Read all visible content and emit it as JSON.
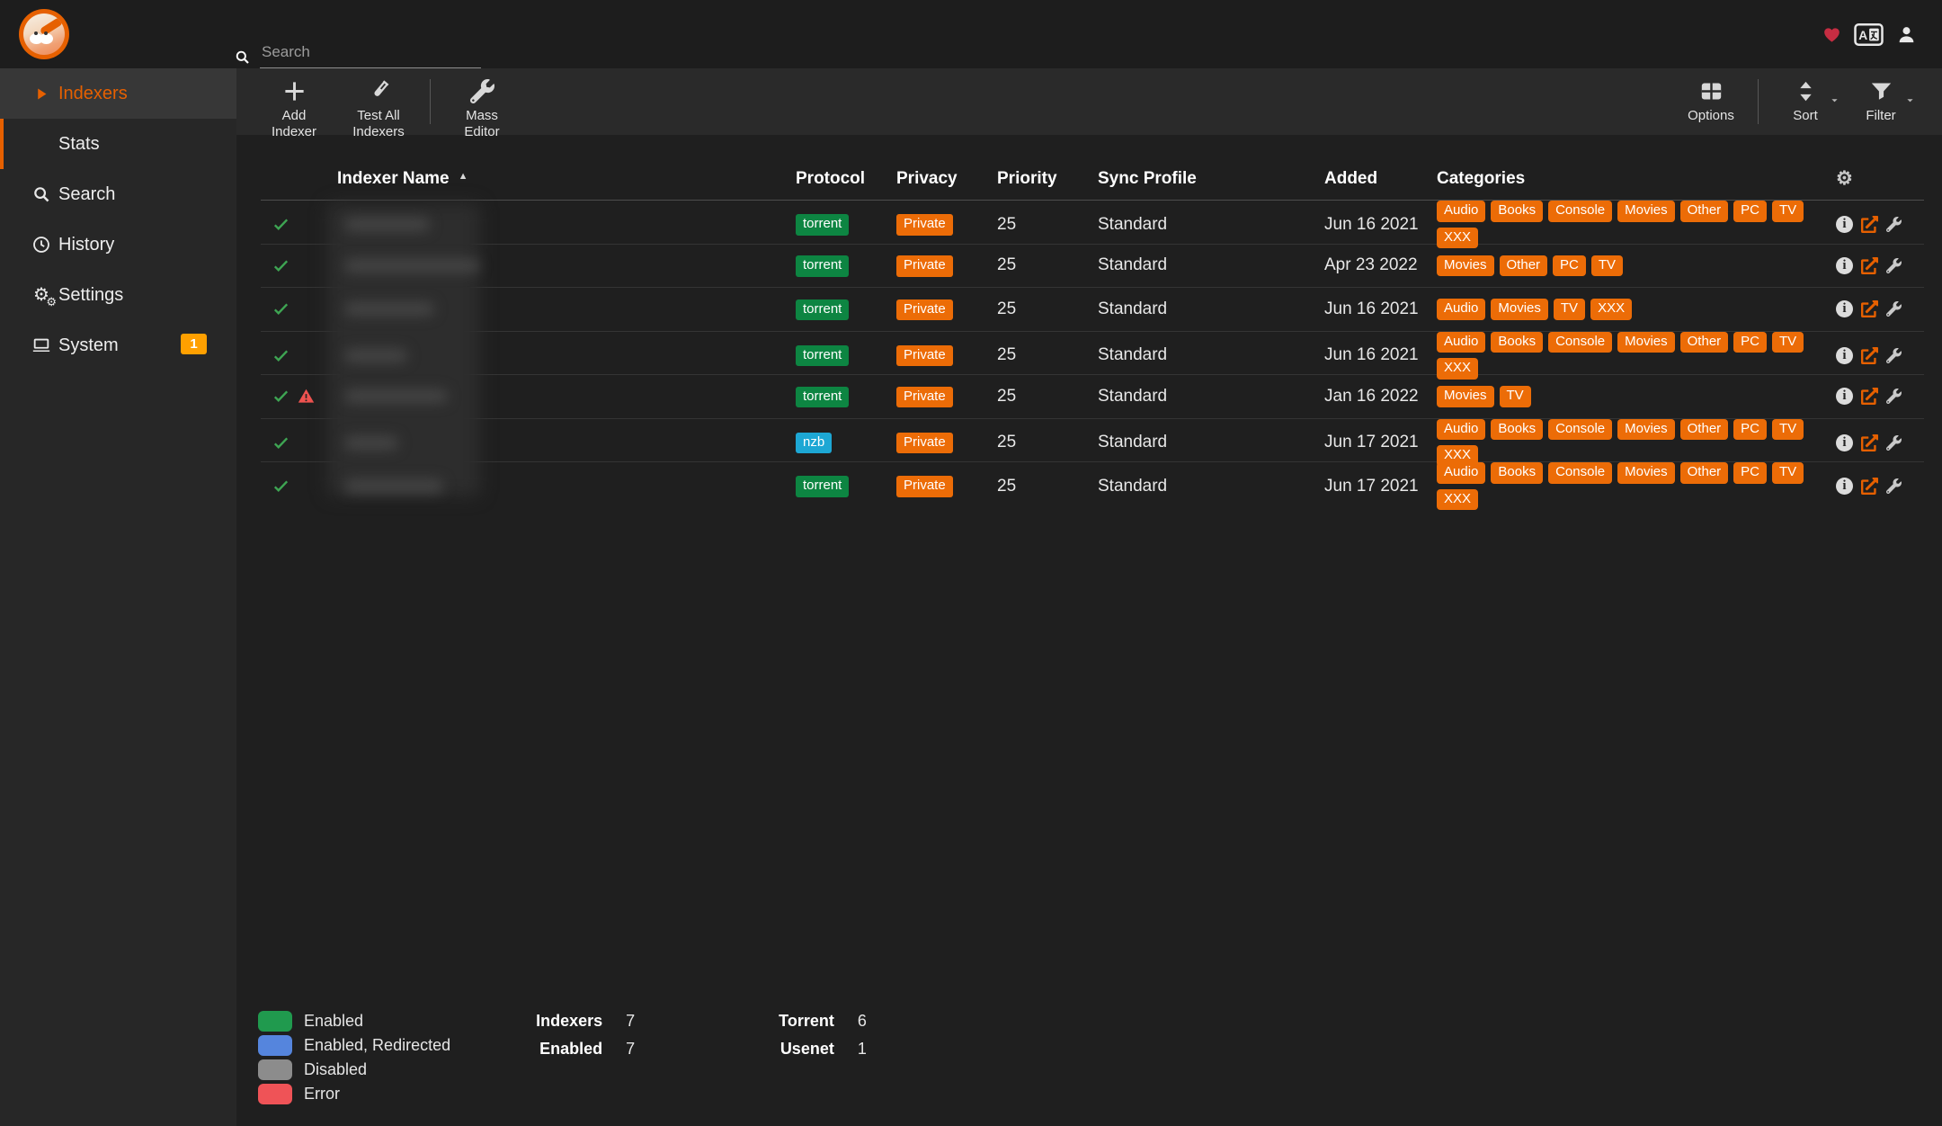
{
  "topbar": {
    "search_placeholder": "Search",
    "icons": [
      "heart-icon",
      "translate-icon",
      "user-icon"
    ]
  },
  "sidebar": {
    "items": [
      {
        "label": "Indexers",
        "icon": "caret-right-icon",
        "active": true
      },
      {
        "label": "Stats",
        "child": true
      },
      {
        "label": "Search",
        "icon": "search-icon"
      },
      {
        "label": "History",
        "icon": "history-icon"
      },
      {
        "label": "Settings",
        "icon": "settings-icon"
      },
      {
        "label": "System",
        "icon": "system-icon",
        "badge": "1"
      }
    ]
  },
  "toolbar": {
    "left": [
      {
        "label": "Add Indexer",
        "icon": "plus-icon"
      },
      {
        "label": "Test All Indexers",
        "icon": "vial-icon"
      },
      {
        "label": "Mass Editor",
        "icon": "wrench-icon"
      }
    ],
    "right": [
      {
        "label": "Options",
        "icon": "table-icon"
      },
      {
        "label": "Sort",
        "icon": "sort-icon",
        "caret": true
      },
      {
        "label": "Filter",
        "icon": "filter-icon",
        "caret": true
      }
    ]
  },
  "table": {
    "columns": {
      "name": "Indexer Name",
      "protocol": "Protocol",
      "privacy": "Privacy",
      "priority": "Priority",
      "sync_profile": "Sync Profile",
      "added": "Added",
      "categories": "Categories"
    },
    "sort": {
      "column": "Indexer Name",
      "direction": "asc"
    },
    "rows": [
      {
        "enabled": true,
        "warning": false,
        "protocol": "torrent",
        "privacy": "Private",
        "priority": "25",
        "sync_profile": "Standard",
        "added": "Jun 16 2021",
        "categories": [
          "Audio",
          "Books",
          "Console",
          "Movies",
          "Other",
          "PC",
          "TV",
          "XXX"
        ]
      },
      {
        "enabled": true,
        "warning": false,
        "protocol": "torrent",
        "privacy": "Private",
        "priority": "25",
        "sync_profile": "Standard",
        "added": "Apr 23 2022",
        "categories": [
          "Movies",
          "Other",
          "PC",
          "TV"
        ]
      },
      {
        "enabled": true,
        "warning": false,
        "protocol": "torrent",
        "privacy": "Private",
        "priority": "25",
        "sync_profile": "Standard",
        "added": "Jun 16 2021",
        "categories": [
          "Audio",
          "Movies",
          "TV",
          "XXX"
        ]
      },
      {
        "enabled": true,
        "warning": false,
        "protocol": "torrent",
        "privacy": "Private",
        "priority": "25",
        "sync_profile": "Standard",
        "added": "Jun 16 2021",
        "categories": [
          "Audio",
          "Books",
          "Console",
          "Movies",
          "Other",
          "PC",
          "TV",
          "XXX"
        ]
      },
      {
        "enabled": true,
        "warning": true,
        "protocol": "torrent",
        "privacy": "Private",
        "priority": "25",
        "sync_profile": "Standard",
        "added": "Jan 16 2022",
        "categories": [
          "Movies",
          "TV"
        ]
      },
      {
        "enabled": true,
        "warning": false,
        "protocol": "nzb",
        "privacy": "Private",
        "priority": "25",
        "sync_profile": "Standard",
        "added": "Jun 17 2021",
        "categories": [
          "Audio",
          "Books",
          "Console",
          "Movies",
          "Other",
          "PC",
          "TV",
          "XXX"
        ]
      },
      {
        "enabled": true,
        "warning": false,
        "protocol": "torrent",
        "privacy": "Private",
        "priority": "25",
        "sync_profile": "Standard",
        "added": "Jun 17 2021",
        "categories": [
          "Audio",
          "Books",
          "Console",
          "Movies",
          "Other",
          "PC",
          "TV",
          "XXX"
        ]
      }
    ]
  },
  "legend": [
    {
      "label": "Enabled",
      "color": "#209a4e"
    },
    {
      "label": "Enabled, Redirected",
      "color": "#5585dd"
    },
    {
      "label": "Disabled",
      "color": "#8c8c8c"
    },
    {
      "label": "Error",
      "color": "#ef5357"
    }
  ],
  "stats": {
    "col1": [
      {
        "label": "Indexers",
        "value": "7"
      },
      {
        "label": "Enabled",
        "value": "7"
      }
    ],
    "col2": [
      {
        "label": "Torrent",
        "value": "6"
      },
      {
        "label": "Usenet",
        "value": "1"
      }
    ]
  },
  "colors": {
    "accent": "#e66000",
    "badge": "#ec6c07",
    "protocol": {
      "torrent": "#0d8542",
      "nzb": "#1da7d4"
    },
    "system_badge": "#ffa000",
    "heart": "#c62d42",
    "success": "#3ea553",
    "danger": "#ef5350"
  }
}
